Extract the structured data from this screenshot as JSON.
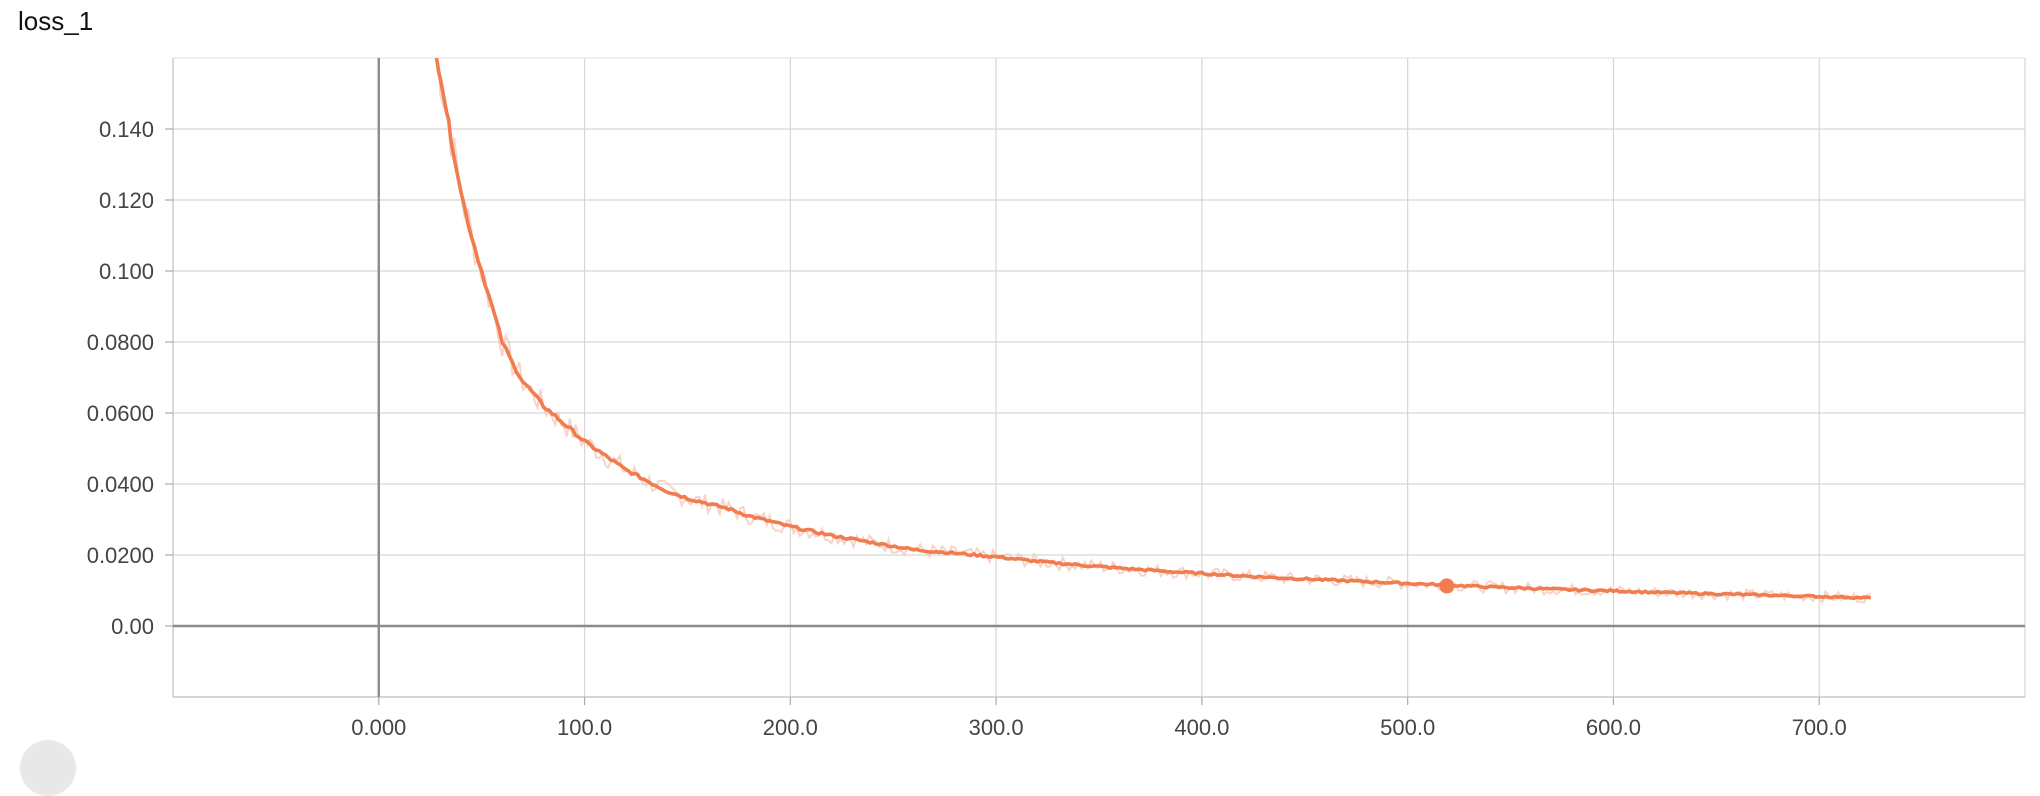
{
  "chart_data": {
    "type": "line",
    "title": "loss_1",
    "xlabel": "",
    "ylabel": "",
    "xlim": [
      -100,
      800
    ],
    "ylim": [
      -0.02,
      0.16
    ],
    "x_ticks": [
      0,
      100,
      200,
      300,
      400,
      500,
      600,
      700
    ],
    "x_tick_labels": [
      "0.000",
      "100.0",
      "200.0",
      "300.0",
      "400.0",
      "500.0",
      "600.0",
      "700.0"
    ],
    "y_ticks": [
      0,
      0.02,
      0.04,
      0.06,
      0.08,
      0.1,
      0.12,
      0.14
    ],
    "y_tick_labels": [
      "0.00",
      "0.0200",
      "0.0400",
      "0.0600",
      "0.0800",
      "0.100",
      "0.120",
      "0.140"
    ],
    "grid": true,
    "series": [
      {
        "color": "#f07c4f",
        "raw_color": "#f7c9b6",
        "x": [
          28,
          30,
          33,
          35,
          40,
          45,
          50,
          55,
          60,
          65,
          70,
          80,
          90,
          100,
          110,
          120,
          130,
          140,
          150,
          160,
          170,
          180,
          190,
          200,
          220,
          240,
          260,
          280,
          300,
          320,
          340,
          360,
          380,
          400,
          420,
          440,
          460,
          480,
          500,
          520,
          540,
          560,
          580,
          600,
          620,
          640,
          660,
          680,
          700,
          720,
          725
        ],
        "y": [
          0.16,
          0.155,
          0.145,
          0.138,
          0.122,
          0.11,
          0.1,
          0.09,
          0.08,
          0.074,
          0.069,
          0.062,
          0.057,
          0.052,
          0.048,
          0.044,
          0.041,
          0.038,
          0.036,
          0.0345,
          0.033,
          0.031,
          0.0295,
          0.028,
          0.0255,
          0.0235,
          0.0215,
          0.0205,
          0.0195,
          0.0182,
          0.0172,
          0.0163,
          0.0155,
          0.0148,
          0.0141,
          0.0135,
          0.013,
          0.0125,
          0.012,
          0.0115,
          0.011,
          0.0106,
          0.0102,
          0.0099,
          0.0095,
          0.0092,
          0.0089,
          0.0086,
          0.0083,
          0.008,
          0.0079
        ]
      }
    ],
    "highlight_point": {
      "x": 519,
      "y": 0.0113
    }
  }
}
